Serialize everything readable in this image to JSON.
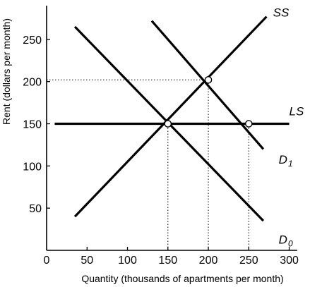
{
  "chart_data": {
    "type": "line",
    "xlabel": "Quantity (thousands of apartments per month)",
    "ylabel": "Rent (dollars per month)",
    "xlim": [
      0,
      310
    ],
    "ylim": [
      0,
      290
    ],
    "x_ticks": [
      {
        "value": 0,
        "label": "0"
      },
      {
        "value": 50,
        "label": "50"
      },
      {
        "value": 100,
        "label": "100"
      },
      {
        "value": 150,
        "label": "150"
      },
      {
        "value": 200,
        "label": "200"
      },
      {
        "value": 250,
        "label": "250"
      },
      {
        "value": 300,
        "label": "300"
      }
    ],
    "y_ticks": [
      {
        "value": 50,
        "label": "50"
      },
      {
        "value": 100,
        "label": "100"
      },
      {
        "value": 150,
        "label": "150"
      },
      {
        "value": 200,
        "label": "200"
      },
      {
        "value": 250,
        "label": "250"
      }
    ],
    "grid": false,
    "legend": "none",
    "series": [
      {
        "name": "SS",
        "label_main": "SS",
        "label_sub": "",
        "label_anchor": [
          280,
          277
        ],
        "x": [
          35,
          272
        ],
        "y": [
          40,
          277
        ]
      },
      {
        "name": "LS",
        "label_main": "LS",
        "label_sub": "",
        "label_anchor": [
          300,
          160
        ],
        "x": [
          10,
          300
        ],
        "y": [
          150,
          150
        ]
      },
      {
        "name": "D1",
        "label_main": "D",
        "label_sub": "1",
        "label_anchor": [
          287,
          103
        ],
        "x": [
          130,
          268
        ],
        "y": [
          272,
          120
        ]
      },
      {
        "name": "D0",
        "label_main": "D",
        "label_sub": "0",
        "label_anchor": [
          287,
          8
        ],
        "x": [
          35,
          268
        ],
        "y": [
          265,
          35
        ]
      }
    ],
    "equilibrium_points": [
      {
        "x": 150,
        "y": 150
      },
      {
        "x": 200,
        "y": 202
      },
      {
        "x": 250,
        "y": 150
      }
    ],
    "guide_lines": [
      {
        "x": [
          0,
          200
        ],
        "y": [
          202,
          202
        ]
      },
      {
        "x": [
          150,
          150
        ],
        "y": [
          0,
          150
        ]
      },
      {
        "x": [
          200,
          200
        ],
        "y": [
          0,
          202
        ]
      },
      {
        "x": [
          250,
          250
        ],
        "y": [
          0,
          150
        ]
      }
    ]
  }
}
